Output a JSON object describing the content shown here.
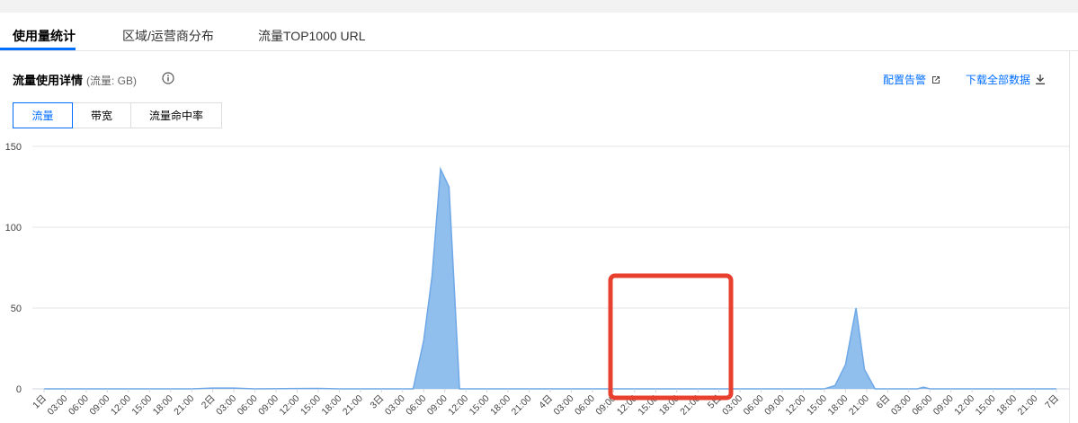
{
  "tabs": [
    {
      "label": "使用量统计",
      "active": true
    },
    {
      "label": "区域/运营商分布",
      "active": false
    },
    {
      "label": "流量TOP1000 URL",
      "active": false
    }
  ],
  "panel": {
    "title": "流量使用详情",
    "unit": "(流量: GB)",
    "actions": {
      "alarm": "配置告警",
      "download": "下载全部数据"
    }
  },
  "metric_tabs": [
    {
      "label": "流量",
      "active": true
    },
    {
      "label": "带宽",
      "active": false
    },
    {
      "label": "流量命中率",
      "active": false
    }
  ],
  "colors": {
    "accent": "#006eff",
    "area": "#90bfee",
    "line": "#6fa8e6",
    "highlight": "#e8402f"
  },
  "chart_data": {
    "type": "area",
    "title": "",
    "xlabel": "",
    "ylabel": "",
    "ylim": [
      0,
      150
    ],
    "yticks": [
      0,
      50,
      100,
      150
    ],
    "grid": true,
    "x_tick_labels": [
      "1日",
      "03:00",
      "06:00",
      "09:00",
      "12:00",
      "15:00",
      "18:00",
      "21:00",
      "2日",
      "03:00",
      "06:00",
      "09:00",
      "12:00",
      "15:00",
      "18:00",
      "21:00",
      "3日",
      "03:00",
      "06:00",
      "09:00",
      "12:00",
      "15:00",
      "18:00",
      "21:00",
      "4日",
      "03:00",
      "06:00",
      "09:00",
      "12:00",
      "15:00",
      "18:00",
      "21:00",
      "5日",
      "03:00",
      "06:00",
      "09:00",
      "12:00",
      "15:00",
      "18:00",
      "21:00",
      "6日",
      "03:00",
      "06:00",
      "09:00",
      "12:00",
      "15:00",
      "18:00",
      "21:00",
      "7日"
    ],
    "series": [
      {
        "points": [
          [
            0,
            0
          ],
          [
            7,
            0
          ],
          [
            8,
            0.5
          ],
          [
            9,
            0.5
          ],
          [
            10,
            0
          ],
          [
            12,
            0.2
          ],
          [
            13,
            0.3
          ],
          [
            14,
            0
          ],
          [
            17,
            0
          ],
          [
            17.5,
            0
          ],
          [
            18,
            30
          ],
          [
            18.4,
            70
          ],
          [
            18.8,
            136
          ],
          [
            19.2,
            125
          ],
          [
            19.7,
            0
          ],
          [
            28,
            0
          ],
          [
            37,
            0
          ],
          [
            37.5,
            2
          ],
          [
            38,
            15
          ],
          [
            38.5,
            50
          ],
          [
            38.9,
            12
          ],
          [
            39.4,
            0
          ],
          [
            41.4,
            0
          ],
          [
            41.7,
            1
          ],
          [
            42,
            0
          ],
          [
            48,
            0
          ]
        ]
      }
    ]
  },
  "annotation": {
    "type": "highlight-box",
    "color": "#e8402f"
  }
}
